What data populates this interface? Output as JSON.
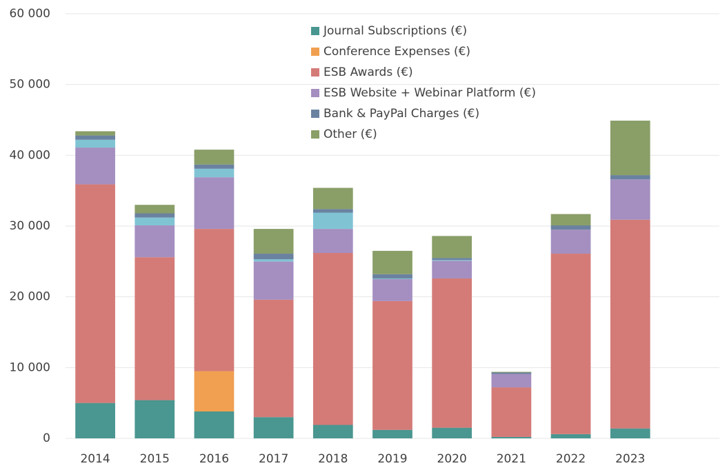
{
  "chart_data": {
    "type": "stacked_bar",
    "categories": [
      "2014",
      "2015",
      "2016",
      "2017",
      "2018",
      "2019",
      "2020",
      "2021",
      "2022",
      "2023",
      null
    ],
    "series": [
      {
        "name": "Journal Subscriptions (€)",
        "color": "#4a9690",
        "values": [
          5000,
          5400,
          3800,
          3000,
          1900,
          1200,
          1500,
          200,
          600,
          1400,
          null
        ]
      },
      {
        "name": "Conference Expenses (€)",
        "color": "#f0a050",
        "values": [
          0,
          0,
          5700,
          0,
          0,
          0,
          0,
          0,
          0,
          0,
          null
        ]
      },
      {
        "name": "ESB Awards (€)",
        "color": "#d47b78",
        "values": [
          30900,
          20200,
          20100,
          16600,
          24300,
          18200,
          21100,
          7000,
          25500,
          29500,
          null
        ]
      },
      {
        "name": "ESB Website + Webinar Platform (€)",
        "color": "#a48fc0",
        "values": [
          5200,
          4500,
          7300,
          5400,
          3400,
          3100,
          2500,
          1900,
          3400,
          5700,
          null
        ]
      },
      {
        "color": "#80c4d4",
        "values": [
          1100,
          1100,
          1200,
          300,
          2300,
          100,
          100,
          0,
          0,
          0,
          null
        ]
      },
      {
        "name": "Bank & PayPal Charges (€)",
        "color": "#6a82a0",
        "values": [
          600,
          600,
          600,
          800,
          500,
          600,
          300,
          200,
          600,
          600,
          null
        ]
      },
      {
        "name": "Other (€)",
        "color": "#8a9e68",
        "values": [
          600,
          1200,
          2100,
          3500,
          3000,
          3300,
          3100,
          100,
          1600,
          7700,
          null
        ]
      }
    ],
    "ylim": [
      0,
      60000
    ],
    "yticks": [
      0,
      {
        "value": 10000,
        "label": "10 000"
      },
      {
        "value": 20000,
        "label": "20 000"
      },
      {
        "value": 30000,
        "label": "30 000"
      },
      {
        "value": 40000,
        "label": "40 000"
      },
      {
        "value": 50000,
        "label": "50 000"
      },
      {
        "value": 60000,
        "label": "60 000"
      }
    ],
    "grid": true,
    "legend": "top"
  }
}
